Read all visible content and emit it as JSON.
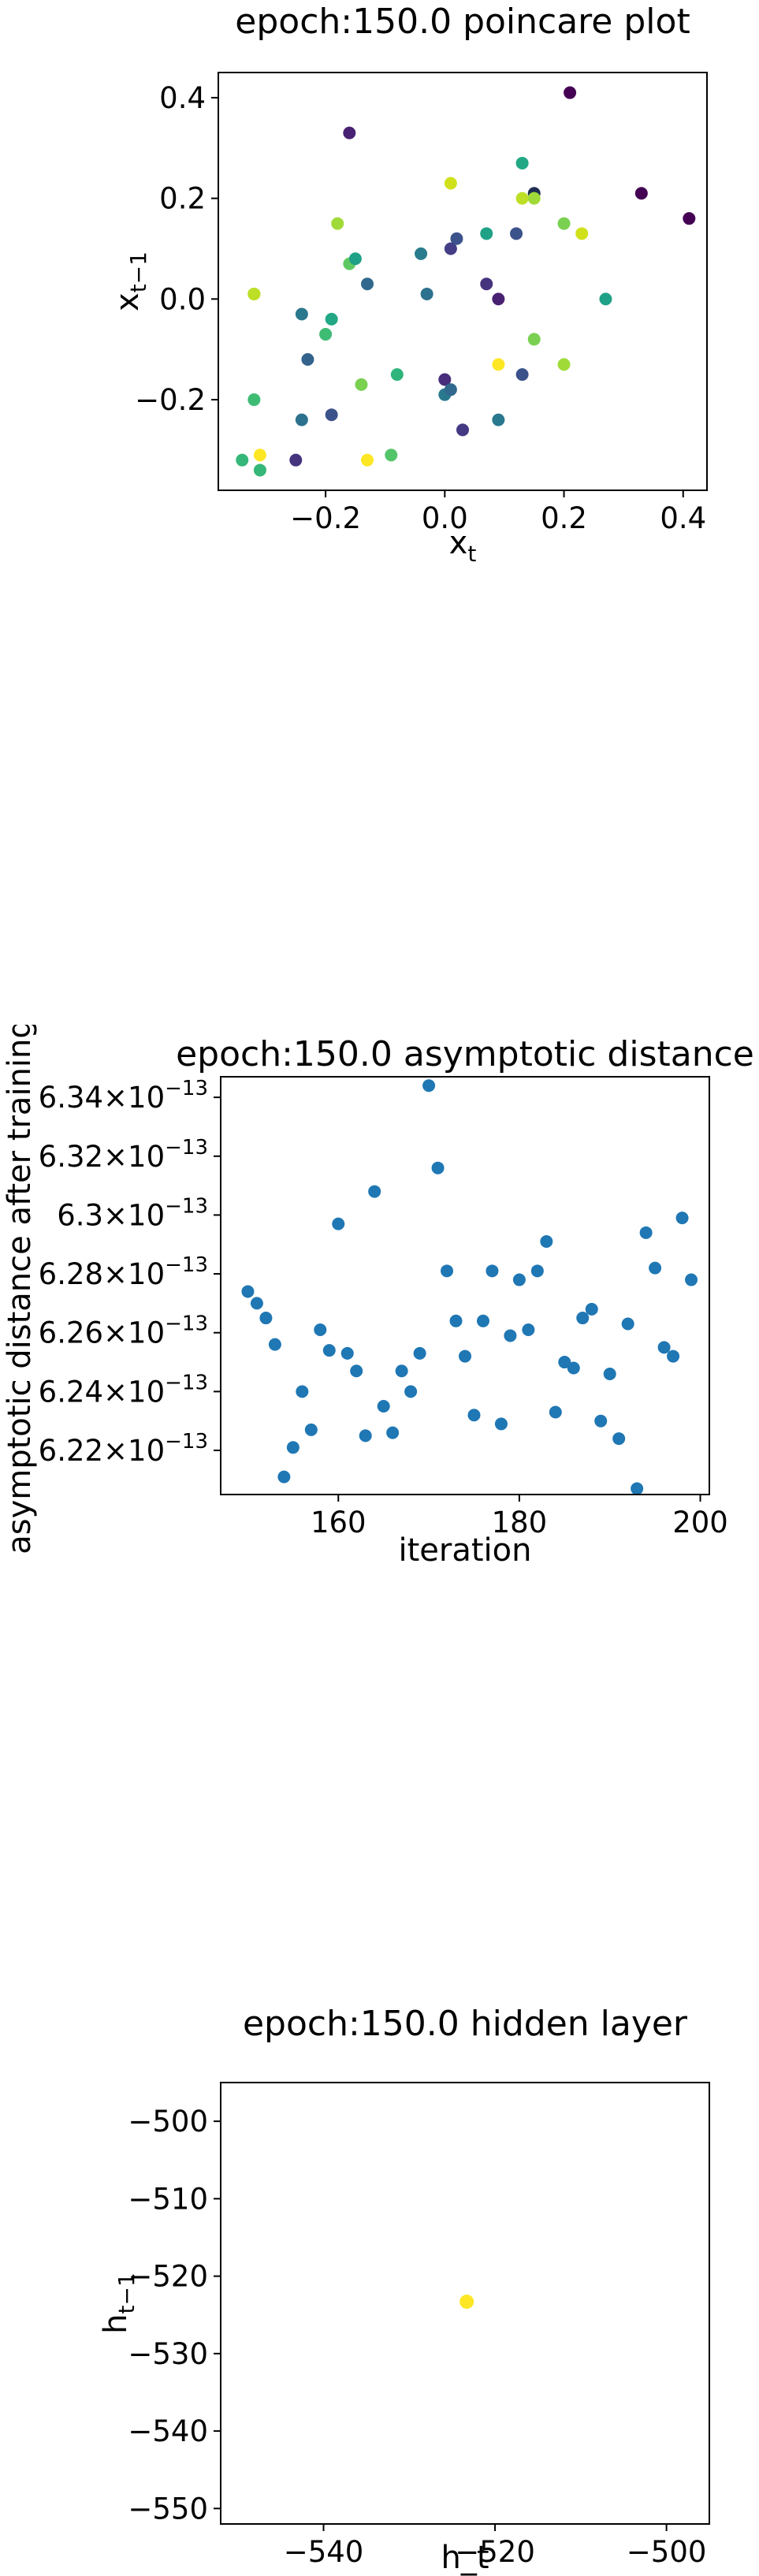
{
  "chart_data": [
    {
      "type": "scatter",
      "title": "epoch:150.0 poincare plot",
      "xlabel_base": "x",
      "xlabel_sub": "t",
      "ylabel_base": "x",
      "ylabel_sub": "t−1",
      "xlim": [
        -0.38,
        0.44
      ],
      "ylim": [
        -0.38,
        0.45
      ],
      "xticks": [
        -0.2,
        0.0,
        0.2,
        0.4
      ],
      "xtick_labels": [
        "−0.2",
        "0.0",
        "0.2",
        "0.4"
      ],
      "yticks": [
        -0.2,
        0.0,
        0.2,
        0.4
      ],
      "ytick_labels": [
        "−0.2",
        "0.0",
        "0.2",
        "0.4"
      ],
      "colormap": "viridis",
      "points": [
        {
          "x": -0.34,
          "y": -0.32,
          "c": "#35b779"
        },
        {
          "x": -0.32,
          "y": 0.01,
          "c": "#22a884"
        },
        {
          "x": -0.32,
          "y": 0.01,
          "c": "#fde725"
        },
        {
          "x": -0.32,
          "y": 0.01,
          "c": "#bddf26"
        },
        {
          "x": -0.32,
          "y": -0.2,
          "c": "#3ebc74"
        },
        {
          "x": -0.31,
          "y": -0.34,
          "c": "#35b779"
        },
        {
          "x": -0.31,
          "y": -0.31,
          "c": "#fde725"
        },
        {
          "x": -0.25,
          "y": -0.32,
          "c": "#46337e"
        },
        {
          "x": -0.24,
          "y": -0.03,
          "c": "#2a788e"
        },
        {
          "x": -0.24,
          "y": -0.24,
          "c": "#2c728e"
        },
        {
          "x": -0.23,
          "y": -0.12,
          "c": "#33638d"
        },
        {
          "x": -0.2,
          "y": -0.07,
          "c": "#3ebc74"
        },
        {
          "x": -0.19,
          "y": -0.04,
          "c": "#22a884"
        },
        {
          "x": -0.19,
          "y": -0.23,
          "c": "#3b528b"
        },
        {
          "x": -0.18,
          "y": 0.15,
          "c": "#a0da39"
        },
        {
          "x": -0.16,
          "y": 0.33,
          "c": "#482173"
        },
        {
          "x": -0.16,
          "y": 0.07,
          "c": "#5ec962"
        },
        {
          "x": -0.15,
          "y": 0.08,
          "c": "#1fa187"
        },
        {
          "x": -0.14,
          "y": -0.17,
          "c": "#7ad151"
        },
        {
          "x": -0.13,
          "y": -0.32,
          "c": "#fde725"
        },
        {
          "x": -0.13,
          "y": 0.03,
          "c": "#31688e"
        },
        {
          "x": -0.09,
          "y": -0.31,
          "c": "#52c569"
        },
        {
          "x": -0.08,
          "y": -0.15,
          "c": "#2fb47c"
        },
        {
          "x": -0.04,
          "y": 0.09,
          "c": "#287c8e"
        },
        {
          "x": -0.03,
          "y": 0.01,
          "c": "#2c728e"
        },
        {
          "x": 0.0,
          "y": -0.16,
          "c": "#472d7b"
        },
        {
          "x": 0.0,
          "y": -0.19,
          "c": "#2a788e"
        },
        {
          "x": 0.01,
          "y": 0.23,
          "c": "#d0e11c"
        },
        {
          "x": 0.01,
          "y": 0.1,
          "c": "#433e85"
        },
        {
          "x": 0.01,
          "y": -0.18,
          "c": "#31688e"
        },
        {
          "x": 0.02,
          "y": 0.12,
          "c": "#3b528b"
        },
        {
          "x": 0.03,
          "y": -0.26,
          "c": "#443983"
        },
        {
          "x": 0.07,
          "y": 0.03,
          "c": "#46337e"
        },
        {
          "x": 0.07,
          "y": 0.13,
          "c": "#1fa187"
        },
        {
          "x": 0.09,
          "y": -0.13,
          "c": "#fde725"
        },
        {
          "x": 0.09,
          "y": -0.24,
          "c": "#2a788e"
        },
        {
          "x": 0.09,
          "y": 0.0,
          "c": "#482173"
        },
        {
          "x": 0.12,
          "y": 0.13,
          "c": "#3b528b"
        },
        {
          "x": 0.13,
          "y": 0.27,
          "c": "#22a884"
        },
        {
          "x": 0.13,
          "y": 0.2,
          "c": "#bddf26"
        },
        {
          "x": 0.13,
          "y": -0.15,
          "c": "#3b528b"
        },
        {
          "x": 0.15,
          "y": 0.21,
          "c": "#1f2d52"
        },
        {
          "x": 0.15,
          "y": 0.2,
          "c": "#a0da39"
        },
        {
          "x": 0.15,
          "y": -0.08,
          "c": "#7ad151"
        },
        {
          "x": 0.2,
          "y": 0.15,
          "c": "#7ad151"
        },
        {
          "x": 0.2,
          "y": -0.13,
          "c": "#a0da39"
        },
        {
          "x": 0.21,
          "y": 0.41,
          "c": "#440154"
        },
        {
          "x": 0.23,
          "y": 0.13,
          "c": "#d0e11c"
        },
        {
          "x": 0.27,
          "y": 0.0,
          "c": "#1fa187"
        },
        {
          "x": 0.33,
          "y": 0.21,
          "c": "#440154"
        },
        {
          "x": 0.41,
          "y": 0.16,
          "c": "#440154"
        }
      ]
    },
    {
      "type": "scatter",
      "title": "epoch:150.0 asymptotic distance",
      "xlabel": "iteration",
      "ylabel": "asymptotic distance after training",
      "ylabel_unit_note": "×10^-13",
      "xlim": [
        147,
        201
      ],
      "ylim": [
        6.205,
        6.347
      ],
      "xticks": [
        160,
        180,
        200
      ],
      "xtick_labels": [
        "160",
        "180",
        "200"
      ],
      "yticks": [
        6.22,
        6.24,
        6.26,
        6.28,
        6.3,
        6.32,
        6.34
      ],
      "ytick_mantissas": [
        "6.22",
        "6.24",
        "6.26",
        "6.28",
        "6.3",
        "6.32",
        "6.34"
      ],
      "ytick_exp_base": "×10",
      "ytick_exp": "−13",
      "marker_color": "#1f77b4",
      "x": [
        150,
        151,
        152,
        153,
        154,
        155,
        156,
        157,
        158,
        159,
        160,
        161,
        162,
        163,
        164,
        165,
        166,
        167,
        168,
        169,
        170,
        171,
        172,
        173,
        174,
        175,
        176,
        177,
        178,
        179,
        180,
        181,
        182,
        183,
        184,
        185,
        186,
        187,
        188,
        189,
        190,
        191,
        192,
        193,
        194,
        195,
        196,
        197,
        198,
        199
      ],
      "y": [
        6.274,
        6.27,
        6.265,
        6.256,
        6.211,
        6.221,
        6.24,
        6.227,
        6.261,
        6.254,
        6.297,
        6.253,
        6.247,
        6.225,
        6.308,
        6.235,
        6.226,
        6.247,
        6.24,
        6.253,
        6.344,
        6.316,
        6.281,
        6.264,
        6.252,
        6.232,
        6.264,
        6.281,
        6.229,
        6.259,
        6.278,
        6.261,
        6.281,
        6.291,
        6.233,
        6.25,
        6.248,
        6.265,
        6.268,
        6.23,
        6.246,
        6.224,
        6.263,
        6.207,
        6.294,
        6.282,
        6.255,
        6.252,
        6.299,
        6.278
      ]
    },
    {
      "type": "scatter",
      "title": "epoch:150.0 hidden layer",
      "xlabel": "h_t",
      "ylabel_base": "h",
      "ylabel_sub": "t−1",
      "xlim": [
        -552,
        -495
      ],
      "ylim": [
        -552,
        -495
      ],
      "xticks": [
        -540,
        -520,
        -500
      ],
      "xtick_labels": [
        "−540",
        "−520",
        "−500"
      ],
      "yticks": [
        -500,
        -510,
        -520,
        -530,
        -540,
        -550
      ],
      "ytick_labels": [
        "−500",
        "−510",
        "−520",
        "−530",
        "−540",
        "−550"
      ],
      "points": [
        {
          "x": -523.3,
          "y": -523.3,
          "c": "#fde725"
        }
      ]
    }
  ]
}
